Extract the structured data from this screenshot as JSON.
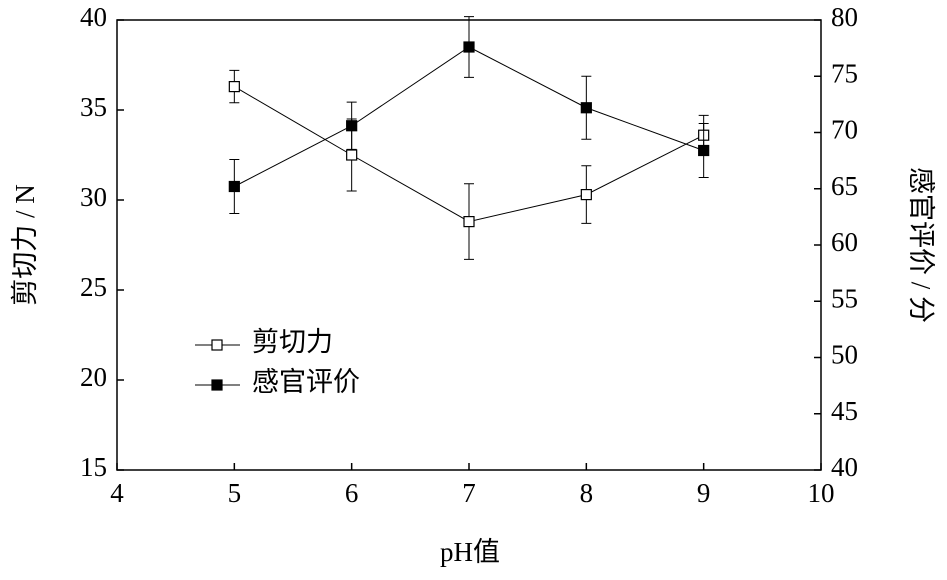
{
  "chart_data": {
    "type": "line",
    "x_label": "pH值",
    "y_label": "剪切力 / N",
    "y2_label": "感官评价 / 分",
    "x": [
      5,
      6,
      7,
      8,
      9
    ],
    "series": [
      {
        "name": "剪切力",
        "color": "#000000",
        "marker": "open-square",
        "axis": "y",
        "values": [
          36.3,
          32.5,
          28.8,
          30.3,
          33.6
        ],
        "errors": [
          0.9,
          2.0,
          2.1,
          1.6,
          1.1
        ]
      },
      {
        "name": "感官评价",
        "color": "#000000",
        "marker": "filled-square",
        "axis": "y2",
        "values": [
          65.2,
          70.6,
          77.6,
          72.2,
          68.4
        ],
        "errors": [
          2.4,
          2.1,
          2.7,
          2.8,
          2.4
        ]
      }
    ],
    "xlim": [
      4,
      10
    ],
    "xticks": [
      4,
      5,
      6,
      7,
      8,
      9,
      10
    ],
    "ylim": [
      15,
      40
    ],
    "yticks": [
      15,
      20,
      25,
      30,
      35,
      40
    ],
    "y2lim": [
      40,
      80
    ],
    "y2ticks": [
      40,
      45,
      50,
      55,
      60,
      65,
      70,
      75,
      80
    ],
    "legend": "left"
  }
}
